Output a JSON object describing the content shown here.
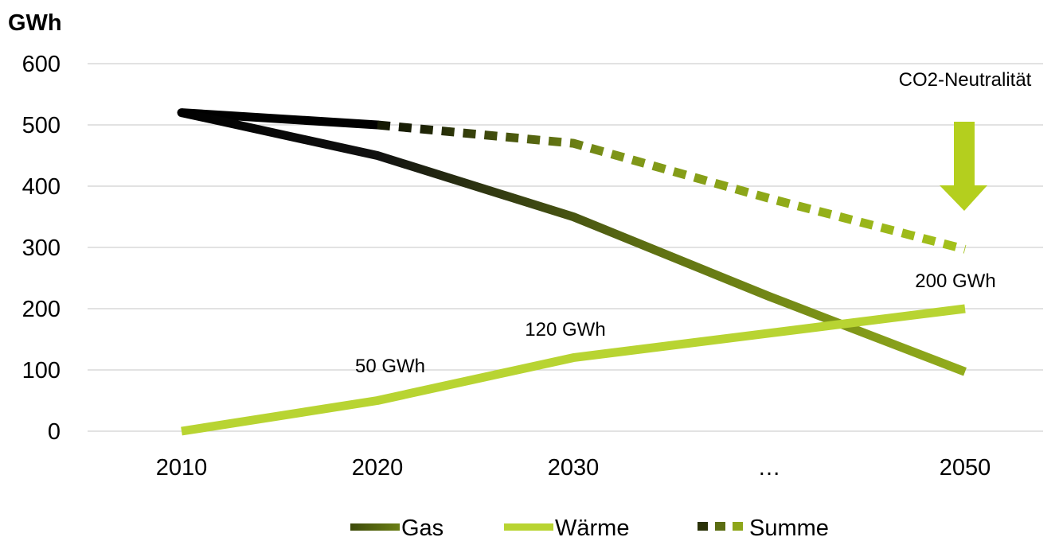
{
  "chart_data": {
    "type": "line",
    "unit_label": "GWh",
    "categories": [
      "2010",
      "2020",
      "2030",
      "…",
      "2050"
    ],
    "ylim": [
      0,
      600
    ],
    "yticks": [
      "0",
      "100",
      "200",
      "300",
      "400",
      "500",
      "600"
    ],
    "grid": true,
    "legend_placement": "bottom",
    "series": [
      {
        "name": "Gas",
        "values": [
          520,
          450,
          350,
          220,
          97
        ],
        "color_start": "#000000",
        "color_end": "#8aa31a",
        "style": "solid"
      },
      {
        "name": "Wärme",
        "values": [
          0,
          50,
          120,
          160,
          200
        ],
        "color": "#b8d432",
        "style": "solid"
      },
      {
        "name": "Summe",
        "values": [
          520,
          500,
          470,
          380,
          297
        ],
        "color_start": "#000000",
        "color_end": "#a6c41a",
        "style": "dashed-from-2020"
      }
    ],
    "annotations": [
      {
        "text": "50 GWh",
        "category": "2020",
        "value": 50
      },
      {
        "text": "120 GWh",
        "category": "2030",
        "value": 120
      },
      {
        "text": "200 GWh",
        "category": "2050",
        "value": 200
      },
      {
        "text": "CO2-Neutralität",
        "category": "2050",
        "value": 600,
        "with_arrow": true
      }
    ],
    "arrow_color": "#b4cf1e"
  }
}
